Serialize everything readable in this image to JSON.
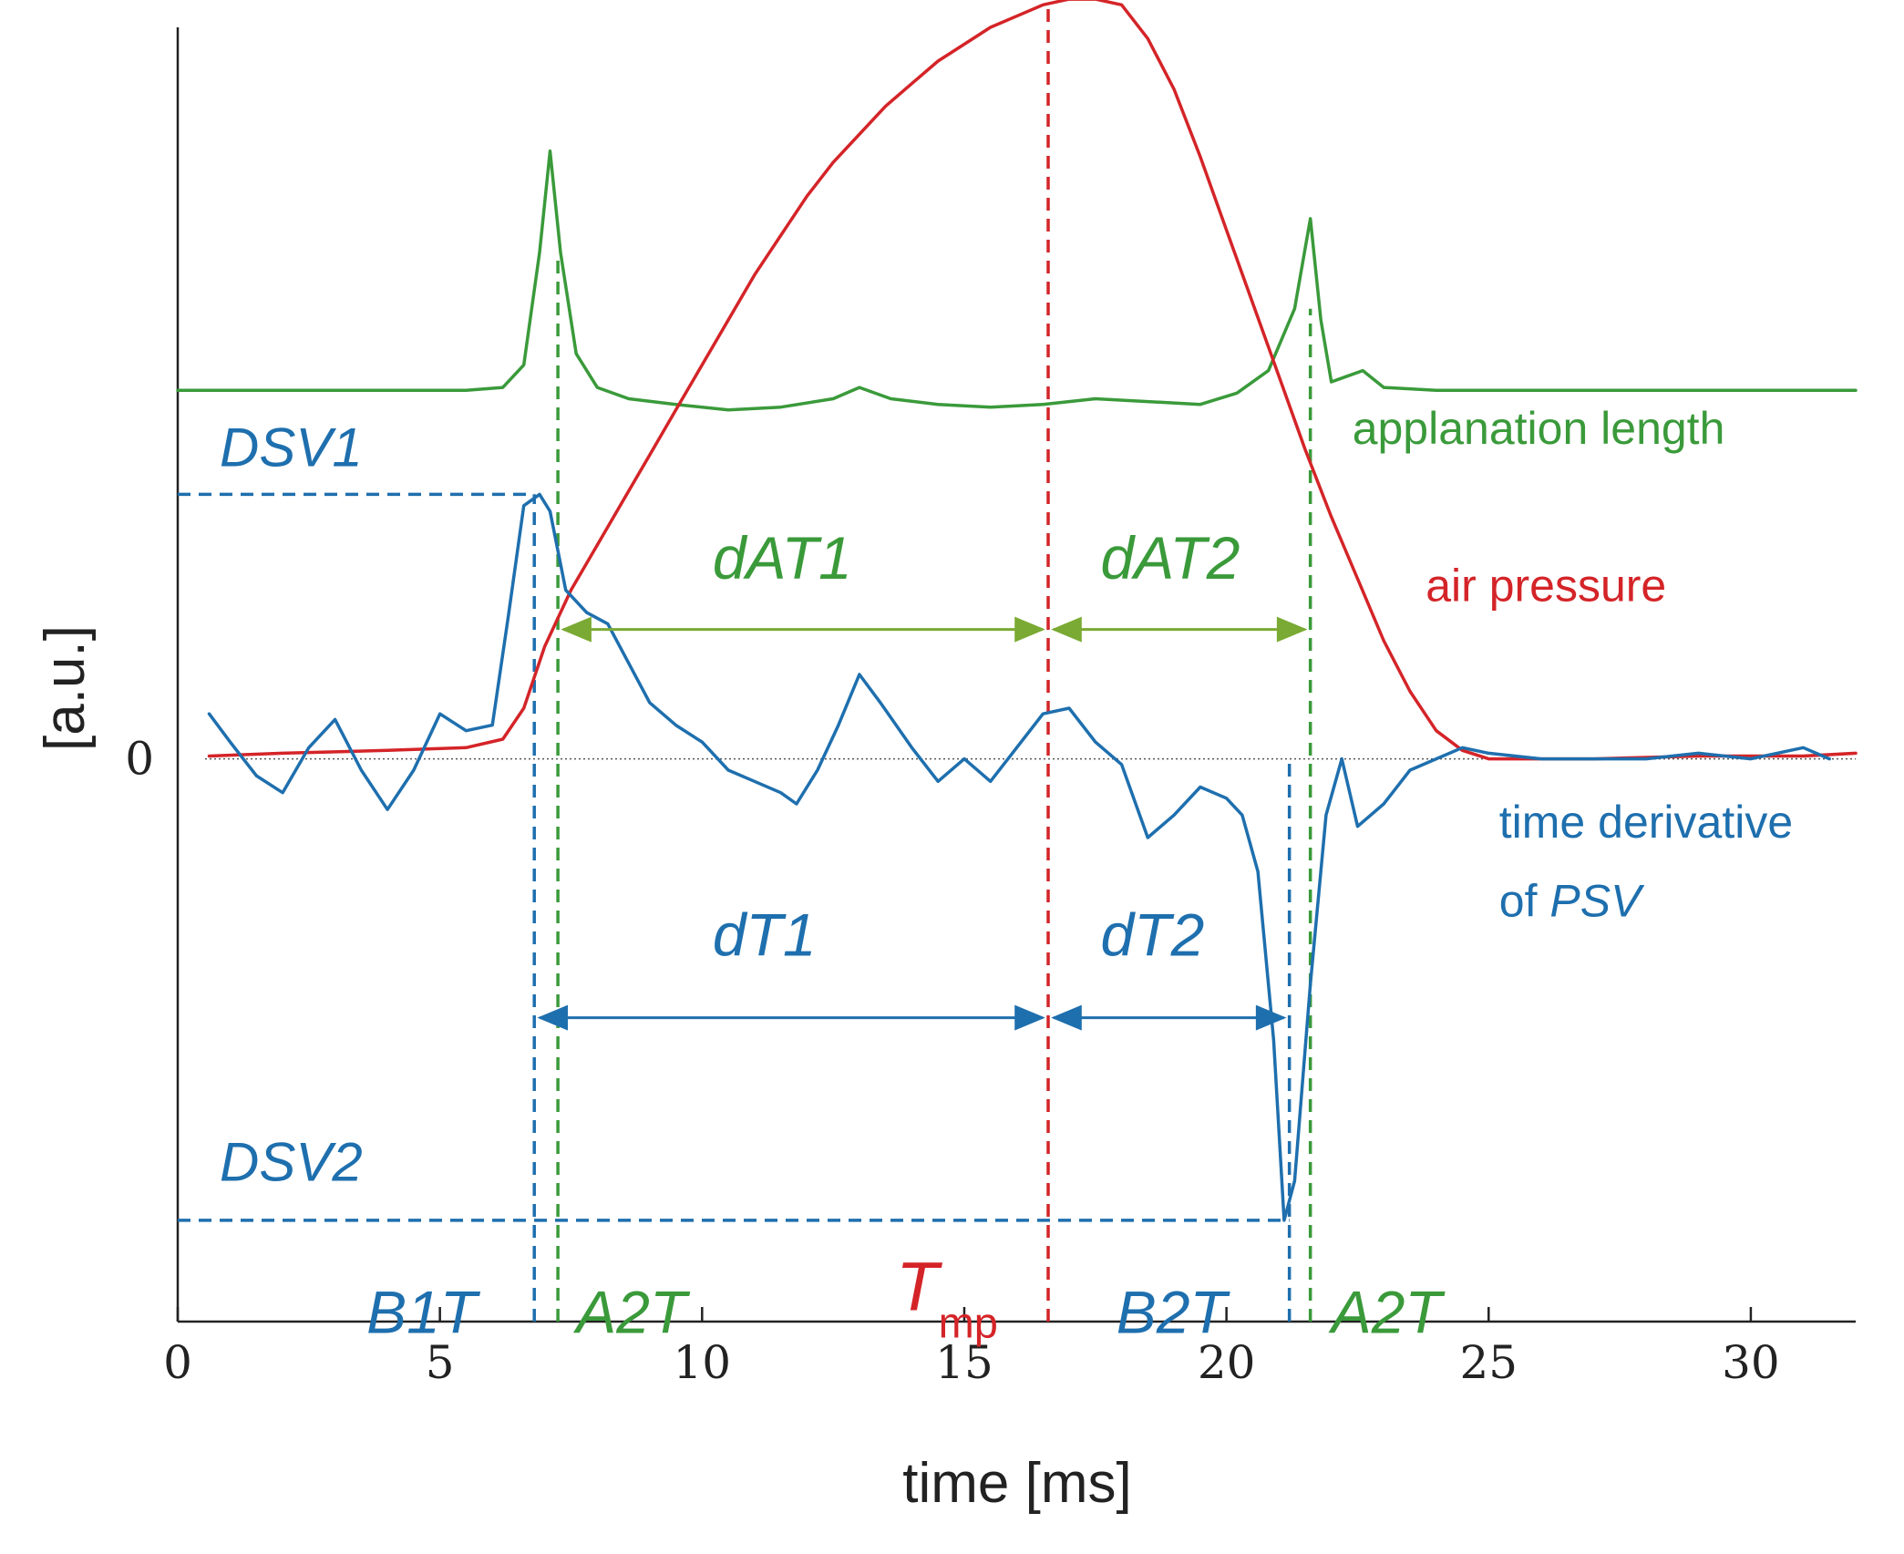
{
  "chart_data": {
    "type": "line",
    "xlabel": "time [ms]",
    "ylabel": "[a.u.]",
    "xlim": [
      0,
      32
    ],
    "ylim": [
      -1.0,
      1.3
    ],
    "x_ticks": [
      0,
      5,
      10,
      15,
      20,
      25,
      30
    ],
    "y_ticks": [
      0
    ],
    "y_tick_labels": [
      "0"
    ],
    "zero_line": "dotted",
    "colors": {
      "green": "#3a9a3a",
      "red": "#d42428",
      "blue": "#1e6fae",
      "axis": "#222222"
    },
    "series": [
      {
        "name": "applanation length",
        "color": "#3a9a3a",
        "x": [
          0.0,
          5.5,
          6.2,
          6.6,
          6.9,
          7.1,
          7.3,
          7.6,
          8.0,
          8.6,
          9.5,
          10.5,
          11.5,
          12.5,
          13.0,
          13.6,
          14.5,
          15.5,
          16.5,
          17.5,
          18.5,
          19.5,
          20.2,
          20.8,
          21.3,
          21.6,
          21.8,
          22.0,
          22.3,
          22.6,
          23.0,
          24.0,
          26.0,
          28.0,
          30.0,
          32.0
        ],
        "y": [
          0.655,
          0.655,
          0.66,
          0.7,
          0.9,
          1.08,
          0.9,
          0.72,
          0.66,
          0.64,
          0.63,
          0.62,
          0.625,
          0.64,
          0.66,
          0.64,
          0.63,
          0.625,
          0.63,
          0.64,
          0.635,
          0.63,
          0.65,
          0.69,
          0.8,
          0.96,
          0.78,
          0.67,
          0.68,
          0.69,
          0.66,
          0.655,
          0.655,
          0.655,
          0.655,
          0.655
        ]
      },
      {
        "name": "air pressure",
        "color": "#d42428",
        "x": [
          0.6,
          2.0,
          4.0,
          5.5,
          6.2,
          6.6,
          7.0,
          7.5,
          8.0,
          8.5,
          9.0,
          9.5,
          10.0,
          10.5,
          11.0,
          11.5,
          12.0,
          12.5,
          13.0,
          13.5,
          14.0,
          14.5,
          15.0,
          15.5,
          16.0,
          16.5,
          17.0,
          17.5,
          18.0,
          18.5,
          19.0,
          19.5,
          20.0,
          20.5,
          21.0,
          21.5,
          22.0,
          22.5,
          23.0,
          23.5,
          24.0,
          24.5,
          25.0,
          27.0,
          29.0,
          31.0,
          32.0
        ],
        "y": [
          0.005,
          0.01,
          0.015,
          0.02,
          0.035,
          0.09,
          0.2,
          0.3,
          0.38,
          0.46,
          0.54,
          0.62,
          0.7,
          0.78,
          0.86,
          0.93,
          1.0,
          1.06,
          1.11,
          1.16,
          1.2,
          1.24,
          1.27,
          1.3,
          1.32,
          1.34,
          1.35,
          1.35,
          1.34,
          1.28,
          1.19,
          1.07,
          0.94,
          0.81,
          0.68,
          0.55,
          0.43,
          0.32,
          0.21,
          0.12,
          0.05,
          0.015,
          0.0,
          0.0,
          0.005,
          0.005,
          0.01
        ]
      },
      {
        "name": "time derivative of PSV",
        "color": "#1e6fae",
        "x": [
          0.6,
          1.0,
          1.5,
          2.0,
          2.5,
          3.0,
          3.5,
          4.0,
          4.5,
          5.0,
          5.5,
          6.0,
          6.3,
          6.6,
          6.9,
          7.1,
          7.4,
          7.8,
          8.2,
          8.6,
          9.0,
          9.5,
          10.0,
          10.5,
          11.0,
          11.5,
          11.8,
          12.2,
          12.6,
          13.0,
          13.4,
          14.0,
          14.5,
          15.0,
          15.5,
          16.0,
          16.5,
          17.0,
          17.5,
          18.0,
          18.5,
          19.0,
          19.5,
          20.0,
          20.3,
          20.6,
          20.9,
          21.1,
          21.3,
          21.6,
          21.9,
          22.2,
          22.5,
          23.0,
          23.5,
          24.0,
          24.5,
          25.0,
          26.0,
          27.0,
          28.0,
          29.0,
          30.0,
          30.5,
          31.0,
          31.5
        ],
        "y": [
          0.08,
          0.03,
          -0.03,
          -0.06,
          0.02,
          0.07,
          -0.02,
          -0.09,
          -0.02,
          0.08,
          0.05,
          0.06,
          0.25,
          0.45,
          0.47,
          0.44,
          0.3,
          0.26,
          0.24,
          0.17,
          0.1,
          0.06,
          0.03,
          -0.02,
          -0.04,
          -0.06,
          -0.08,
          -0.02,
          0.06,
          0.15,
          0.1,
          0.02,
          -0.04,
          0.0,
          -0.04,
          0.02,
          0.08,
          0.09,
          0.03,
          -0.01,
          -0.14,
          -0.1,
          -0.05,
          -0.07,
          -0.1,
          -0.2,
          -0.5,
          -0.82,
          -0.75,
          -0.4,
          -0.1,
          0.0,
          -0.12,
          -0.08,
          -0.02,
          0.0,
          0.02,
          0.01,
          0.0,
          0.0,
          0.0,
          0.01,
          0.0,
          0.01,
          0.02,
          0.0
        ]
      }
    ],
    "vlines": [
      {
        "x": 6.8,
        "color": "#1e6fae",
        "y_top": 0.47
      },
      {
        "x": 7.25,
        "color": "#3a9a3a",
        "y_top": 0.9
      },
      {
        "x": 16.6,
        "color": "#d42428",
        "y_top": 1.34
      },
      {
        "x": 21.2,
        "color": "#1e6fae",
        "y_top": 0.0
      },
      {
        "x": 21.6,
        "color": "#3a9a3a",
        "y_top": 0.8
      }
    ],
    "hlines": [
      {
        "y": 0.47,
        "x_end": 6.8,
        "color": "#1e6fae"
      },
      {
        "y": -0.82,
        "x_end": 21.2,
        "color": "#1e6fae"
      }
    ],
    "arrows": [
      {
        "from": 7.25,
        "to": 16.6,
        "y": 0.23,
        "color": "#7aaa33"
      },
      {
        "from": 16.6,
        "to": 21.6,
        "y": 0.23,
        "color": "#7aaa33"
      },
      {
        "from": 6.8,
        "to": 16.6,
        "y": -0.46,
        "color": "#1e6fae"
      },
      {
        "from": 16.6,
        "to": 21.2,
        "y": -0.46,
        "color": "#1e6fae"
      }
    ],
    "annotations": [
      {
        "text": "applanation length",
        "x": 22.4,
        "y": 0.56,
        "color": "#3a9a3a",
        "italic": false,
        "size": 50
      },
      {
        "text": "air pressure",
        "x": 23.8,
        "y": 0.28,
        "color": "#d42428",
        "italic": false,
        "size": 50
      },
      {
        "text": "time derivative",
        "x": 25.2,
        "y": -0.14,
        "color": "#1e6fae",
        "italic": false,
        "size": 50
      },
      {
        "text": "of PSV",
        "x": 25.2,
        "y": -0.28,
        "color": "#1e6fae",
        "italic": false,
        "size": 50
      },
      {
        "text": "DSV1",
        "x": 0.8,
        "y": 0.52,
        "color": "#1e6fae",
        "italic": true,
        "size": 60
      },
      {
        "text": "DSV2",
        "x": 0.8,
        "y": -0.75,
        "color": "#1e6fae",
        "italic": true,
        "size": 60
      },
      {
        "text": "dAT1",
        "x": 10.2,
        "y": 0.32,
        "color": "#3a9a3a",
        "italic": true,
        "size": 66
      },
      {
        "text": "dAT2",
        "x": 17.6,
        "y": 0.32,
        "color": "#3a9a3a",
        "italic": true,
        "size": 66
      },
      {
        "text": "dT1",
        "x": 10.2,
        "y": -0.35,
        "color": "#1e6fae",
        "italic": true,
        "size": 66
      },
      {
        "text": "dT2",
        "x": 17.6,
        "y": -0.35,
        "color": "#1e6fae",
        "italic": true,
        "size": 66
      },
      {
        "text": "B1T",
        "x": 3.6,
        "y": -1.02,
        "color": "#1e6fae",
        "italic": true,
        "size": 66
      },
      {
        "text": "A2T",
        "x": 7.6,
        "y": -1.02,
        "color": "#3a9a3a",
        "italic": true,
        "size": 66
      },
      {
        "text": "Tmp",
        "x": 13.7,
        "y": -0.98,
        "color": "#d42428",
        "italic": true,
        "size": 76
      },
      {
        "text": "B2T",
        "x": 17.9,
        "y": -1.02,
        "color": "#1e6fae",
        "italic": true,
        "size": 66
      },
      {
        "text": "A2T",
        "x": 22.0,
        "y": -1.02,
        "color": "#3a9a3a",
        "italic": true,
        "size": 66
      }
    ]
  }
}
